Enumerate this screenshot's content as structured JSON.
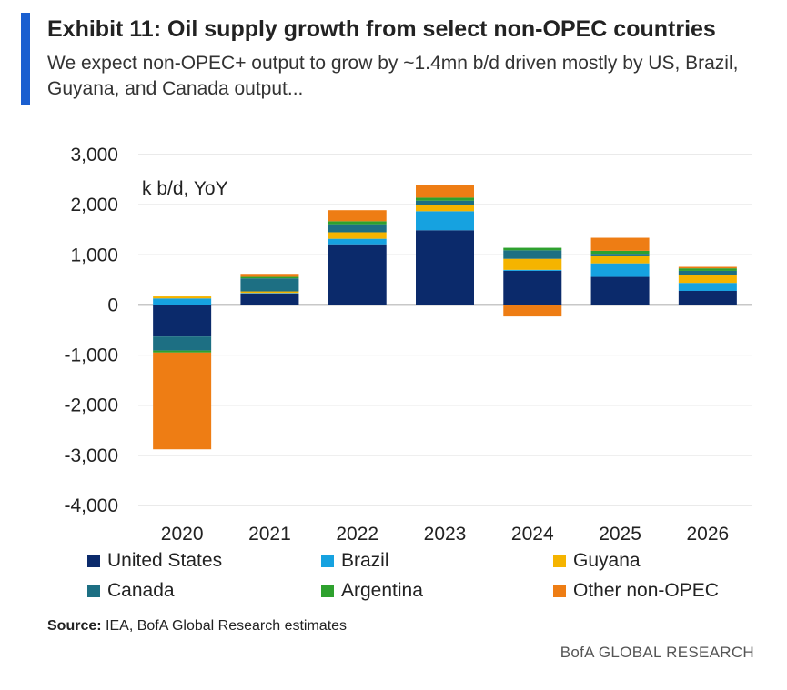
{
  "header": {
    "title": "Exhibit 11: Oil supply growth from select non-OPEC countries",
    "subtitle": "We expect non-OPEC+ output to grow by ~1.4mn b/d driven mostly by US, Brazil, Guyana, and Canada output..."
  },
  "footer": {
    "source_label": "Source:",
    "source_text": "IEA, BofA Global Research estimates",
    "brand": "BofA GLOBAL RESEARCH"
  },
  "colors": {
    "accent": "#1a5fd0"
  },
  "chart_data": {
    "type": "bar",
    "stacked": true,
    "title": "Exhibit 11: Oil supply growth from select non-OPEC countries",
    "ylabel": "k b/d, YoY",
    "xlabel": "",
    "ylim": [
      -4000,
      3000
    ],
    "yticks": [
      3000,
      2000,
      1000,
      0,
      -1000,
      -2000,
      -3000,
      -4000
    ],
    "ytick_labels": [
      "3,000",
      "2,000",
      "1,000",
      "0",
      "-1,000",
      "-2,000",
      "-3,000",
      "-4,000"
    ],
    "grid": true,
    "legend_position": "bottom",
    "categories": [
      "2020",
      "2021",
      "2022",
      "2023",
      "2024",
      "2025",
      "2026"
    ],
    "series": [
      {
        "name": "United States",
        "color": "#0b2a6b",
        "values": [
          -630,
          230,
          1210,
          1490,
          680,
          560,
          280
        ]
      },
      {
        "name": "Brazil",
        "color": "#16a2e0",
        "values": [
          130,
          10,
          110,
          380,
          20,
          270,
          160
        ]
      },
      {
        "name": "Guyana",
        "color": "#f5b400",
        "values": [
          40,
          30,
          130,
          120,
          220,
          140,
          150
        ]
      },
      {
        "name": "Canada",
        "color": "#1d6f83",
        "values": [
          -280,
          260,
          160,
          90,
          170,
          50,
          90
        ]
      },
      {
        "name": "Argentina",
        "color": "#2ea12e",
        "values": [
          -40,
          30,
          60,
          60,
          50,
          60,
          50
        ]
      },
      {
        "name": "Other non-OPEC",
        "color": "#ee7d14",
        "values": [
          -1930,
          60,
          220,
          260,
          -230,
          260,
          30
        ]
      }
    ]
  }
}
